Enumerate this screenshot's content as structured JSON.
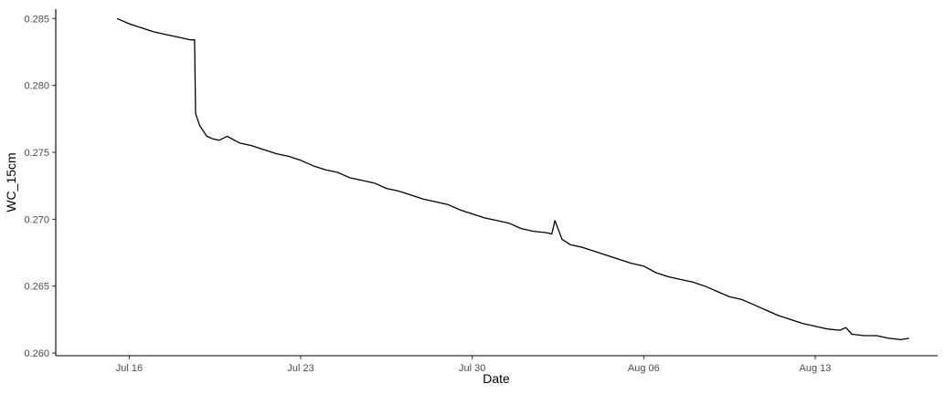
{
  "chart_data": {
    "type": "line",
    "title": "",
    "xlabel": "Date",
    "ylabel": "WC_15cm",
    "x_type": "date",
    "xlim": [
      "2024-07-13",
      "2024-08-18"
    ],
    "ylim": [
      0.2598,
      0.2857
    ],
    "x_ticks": [
      {
        "value": "2024-07-16",
        "label": "Jul 16"
      },
      {
        "value": "2024-07-23",
        "label": "Jul 23"
      },
      {
        "value": "2024-07-30",
        "label": "Jul 30"
      },
      {
        "value": "2024-08-06",
        "label": "Aug 06"
      },
      {
        "value": "2024-08-13",
        "label": "Aug 13"
      }
    ],
    "y_ticks": [
      {
        "value": 0.26,
        "label": "0.260"
      },
      {
        "value": 0.265,
        "label": "0.265"
      },
      {
        "value": 0.27,
        "label": "0.270"
      },
      {
        "value": 0.275,
        "label": "0.275"
      },
      {
        "value": 0.28,
        "label": "0.280"
      },
      {
        "value": 0.285,
        "label": "0.285"
      }
    ],
    "grid": false,
    "legend": "none",
    "line_color": "#000000",
    "series": [
      {
        "x": [
          "2024-07-15T12:00",
          "2024-07-15T18:00",
          "2024-07-16T00:00",
          "2024-07-16T12:00",
          "2024-07-17T00:00",
          "2024-07-17T12:00",
          "2024-07-18T00:00",
          "2024-07-18T12:00",
          "2024-07-18T16:00",
          "2024-07-18T17:00",
          "2024-07-18T21:00",
          "2024-07-19T04:00",
          "2024-07-19T10:00",
          "2024-07-19T16:00",
          "2024-07-20T00:00",
          "2024-07-20T12:00",
          "2024-07-21T00:00",
          "2024-07-21T12:00",
          "2024-07-22T00:00",
          "2024-07-22T12:00",
          "2024-07-23T00:00",
          "2024-07-23T12:00",
          "2024-07-24T00:00",
          "2024-07-24T12:00",
          "2024-07-25T00:00",
          "2024-07-25T12:00",
          "2024-07-26T00:00",
          "2024-07-26T12:00",
          "2024-07-27T00:00",
          "2024-07-27T12:00",
          "2024-07-28T00:00",
          "2024-07-28T12:00",
          "2024-07-29T00:00",
          "2024-07-29T12:00",
          "2024-07-30T00:00",
          "2024-07-30T12:00",
          "2024-07-31T00:00",
          "2024-07-31T12:00",
          "2024-08-01T00:00",
          "2024-08-01T12:00",
          "2024-08-02T00:00",
          "2024-08-02T06:00",
          "2024-08-02T09:00",
          "2024-08-02T16:00",
          "2024-08-03T00:00",
          "2024-08-03T12:00",
          "2024-08-04T00:00",
          "2024-08-04T12:00",
          "2024-08-05T00:00",
          "2024-08-05T12:00",
          "2024-08-06T00:00",
          "2024-08-06T12:00",
          "2024-08-07T00:00",
          "2024-08-07T12:00",
          "2024-08-08T00:00",
          "2024-08-08T12:00",
          "2024-08-09T00:00",
          "2024-08-09T12:00",
          "2024-08-10T00:00",
          "2024-08-10T12:00",
          "2024-08-11T00:00",
          "2024-08-11T12:00",
          "2024-08-12T00:00",
          "2024-08-12T12:00",
          "2024-08-13T00:00",
          "2024-08-13T12:00",
          "2024-08-14T00:00",
          "2024-08-14T06:00",
          "2024-08-14T12:00",
          "2024-08-15T00:00",
          "2024-08-15T12:00",
          "2024-08-16T00:00",
          "2024-08-16T12:00",
          "2024-08-16T20:00"
        ],
        "y": [
          0.285,
          0.2848,
          0.2846,
          0.2843,
          0.284,
          0.2838,
          0.2836,
          0.2834,
          0.2834,
          0.2779,
          0.277,
          0.2762,
          0.276,
          0.2759,
          0.2762,
          0.2757,
          0.2755,
          0.2752,
          0.2749,
          0.2747,
          0.2744,
          0.274,
          0.2737,
          0.2735,
          0.2731,
          0.2729,
          0.2727,
          0.2723,
          0.2721,
          0.2718,
          0.2715,
          0.2713,
          0.2711,
          0.2707,
          0.2704,
          0.2701,
          0.2699,
          0.2697,
          0.2693,
          0.2691,
          0.269,
          0.2689,
          0.2699,
          0.2685,
          0.2681,
          0.2679,
          0.2676,
          0.2673,
          0.267,
          0.2667,
          0.2665,
          0.266,
          0.2657,
          0.2655,
          0.2653,
          0.265,
          0.2646,
          0.2642,
          0.264,
          0.2636,
          0.2632,
          0.2628,
          0.2625,
          0.2622,
          0.262,
          0.2618,
          0.2617,
          0.2619,
          0.2614,
          0.2613,
          0.2613,
          0.2611,
          0.261,
          0.2611
        ]
      }
    ]
  }
}
